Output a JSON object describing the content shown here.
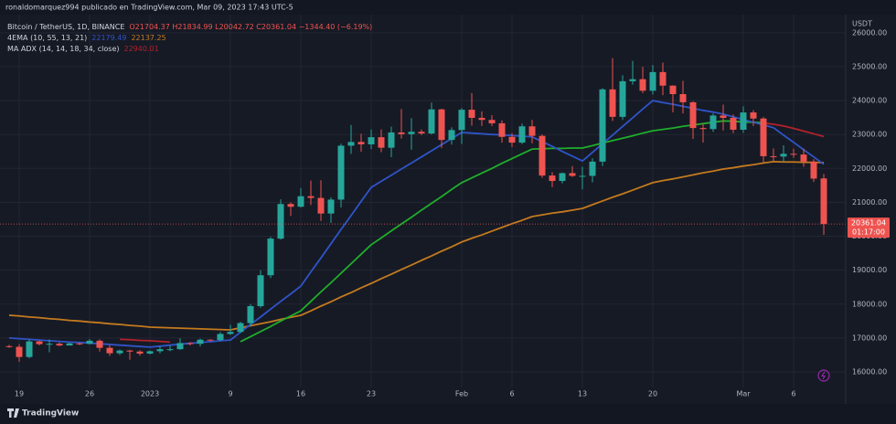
{
  "header": "ronaldomarquez994 publicado en TradingView.com, Mar 09, 2023 17:43 UTC-5",
  "legend": {
    "symbol": "Bitcoin / TetherUS, 1D, BINANCE",
    "ohlc": "O21704.37 H21834.99 L20042.72 C20361.04 −1344.40 (−6.19%)",
    "ema_label": "4EMA (10, 55, 13, 21)",
    "ema_values": [
      "22179.49",
      "22137.25"
    ],
    "adx_label": "MA ADX (14, 14, 18, 34, close)",
    "adx_value": "22940.01"
  },
  "countdown": "01:17:00",
  "axis_unit": "USDT",
  "brand": "TradingView",
  "chart_data": {
    "type": "candlestick",
    "up_color": "#26a69a",
    "down_color": "#ef5350",
    "grid": true,
    "categories": [
      null,
      "19",
      null,
      null,
      null,
      null,
      null,
      null,
      "26",
      null,
      null,
      null,
      null,
      null,
      "2023",
      null,
      null,
      null,
      null,
      null,
      null,
      null,
      "9",
      null,
      null,
      null,
      null,
      null,
      null,
      "16",
      null,
      null,
      null,
      null,
      null,
      null,
      "23",
      null,
      null,
      null,
      null,
      null,
      null,
      null,
      null,
      "Feb",
      null,
      null,
      null,
      null,
      "6",
      null,
      null,
      null,
      null,
      null,
      null,
      "13",
      null,
      null,
      null,
      null,
      null,
      null,
      "20",
      null,
      null,
      null,
      null,
      null,
      null,
      null,
      null,
      "Mar",
      null,
      null,
      null,
      null,
      "6",
      null,
      null,
      null
    ],
    "open": [
      16760,
      16740,
      16440,
      16900,
      16820,
      16830,
      16780,
      16840,
      16830,
      16920,
      16710,
      16550,
      16630,
      16600,
      16540,
      16610,
      16670,
      16670,
      16850,
      16830,
      16950,
      16940,
      17120,
      17180,
      17440,
      17940,
      18850,
      19930,
      20950,
      20870,
      21180,
      21130,
      20670,
      21080,
      22670,
      22780,
      22710,
      22920,
      22610,
      23060,
      23010,
      23080,
      23030,
      23740,
      22840,
      23130,
      23730,
      23490,
      23430,
      23330,
      22930,
      22760,
      23240,
      22960,
      21790,
      21630,
      21860,
      21780,
      21780,
      22200,
      24330,
      23520,
      24570,
      24630,
      24290,
      24840,
      24440,
      24190,
      23950,
      23190,
      23160,
      23560,
      23490,
      23140,
      23650,
      23470,
      22360,
      22350,
      22430,
      22410,
      22200,
      21704.37
    ],
    "high": [
      16800,
      16820,
      16960,
      16920,
      16960,
      16870,
      16870,
      16870,
      16970,
      16960,
      16790,
      16660,
      16650,
      16640,
      16630,
      16760,
      16780,
      16990,
      16880,
      16980,
      16960,
      17180,
      17390,
      17480,
      18000,
      19000,
      19980,
      21090,
      21000,
      21420,
      21640,
      21650,
      21150,
      22730,
      23280,
      23020,
      23150,
      23150,
      23230,
      23750,
      23480,
      23150,
      23940,
      23760,
      23210,
      23780,
      24220,
      23680,
      23570,
      23420,
      23040,
      23320,
      23430,
      23000,
      21890,
      21880,
      22070,
      22050,
      22300,
      24370,
      25250,
      24750,
      25170,
      24990,
      25050,
      25120,
      24450,
      24580,
      23980,
      23320,
      23620,
      23880,
      23590,
      23830,
      23720,
      23520,
      22590,
      22680,
      22580,
      22580,
      22270,
      21834.99
    ],
    "low": [
      16710,
      16300,
      16400,
      16780,
      16580,
      16760,
      16780,
      16790,
      16810,
      16600,
      16470,
      16500,
      16360,
      16480,
      16520,
      16550,
      16610,
      16650,
      16780,
      16750,
      16900,
      16900,
      17090,
      17150,
      17340,
      17890,
      18770,
      19900,
      20600,
      20850,
      20920,
      20450,
      20390,
      20850,
      22430,
      22490,
      22570,
      22480,
      22330,
      22880,
      22550,
      22980,
      23000,
      22600,
      22700,
      22720,
      23260,
      23250,
      23250,
      22760,
      22630,
      22720,
      22740,
      21720,
      21450,
      21560,
      21750,
      21380,
      21590,
      22070,
      23400,
      23430,
      24470,
      24220,
      24180,
      24160,
      23650,
      23620,
      22870,
      22760,
      23080,
      23120,
      23040,
      23050,
      23250,
      22180,
      22220,
      22180,
      22310,
      22050,
      21600,
      20042.72
    ],
    "close": [
      16740,
      16440,
      16900,
      16820,
      16830,
      16780,
      16840,
      16830,
      16920,
      16710,
      16550,
      16630,
      16600,
      16540,
      16610,
      16670,
      16670,
      16850,
      16830,
      16950,
      16940,
      17120,
      17180,
      17440,
      17940,
      18850,
      19930,
      20950,
      20870,
      21180,
      21130,
      20670,
      21080,
      22670,
      22780,
      22710,
      22920,
      22610,
      23060,
      23010,
      23080,
      23030,
      23740,
      22840,
      23130,
      23730,
      23490,
      23430,
      23330,
      22930,
      22760,
      23240,
      22960,
      21790,
      21630,
      21860,
      21780,
      21780,
      22200,
      24330,
      23520,
      24570,
      24630,
      24290,
      24840,
      24440,
      24190,
      23950,
      23190,
      23160,
      23560,
      23490,
      23140,
      23650,
      23470,
      22360,
      22350,
      22430,
      22410,
      22200,
      21700,
      20361.04
    ],
    "series": [
      {
        "color": "#c47a1e",
        "values": [
          17670,
          17650,
          17620,
          17600,
          17570,
          17550,
          17520,
          17500,
          17470,
          17450,
          17420,
          17400,
          17370,
          17350,
          17320,
          17310,
          17300,
          17290,
          17280,
          17270,
          17260,
          17250,
          17240,
          17300,
          17360,
          17420,
          17480,
          17550,
          17610,
          17670,
          17800,
          17940,
          18070,
          18210,
          18340,
          18480,
          18610,
          18750,
          18880,
          19020,
          19150,
          19290,
          19420,
          19560,
          19690,
          19830,
          19940,
          20040,
          20150,
          20260,
          20370,
          20470,
          20580,
          20630,
          20680,
          20720,
          20770,
          20820,
          20930,
          21040,
          21150,
          21250,
          21360,
          21470,
          21580,
          21640,
          21690,
          21750,
          21810,
          21870,
          21920,
          21980,
          22020,
          22070,
          22110,
          22160,
          22200,
          22190,
          22190,
          22180,
          22180,
          22170
        ]
      },
      {
        "color": "#1fae2a",
        "values": [
          null,
          null,
          null,
          null,
          null,
          null,
          null,
          null,
          null,
          null,
          null,
          null,
          null,
          null,
          null,
          null,
          null,
          null,
          null,
          null,
          null,
          null,
          null,
          16890,
          17040,
          17190,
          17340,
          17500,
          17650,
          17800,
          18080,
          18360,
          18630,
          18910,
          19190,
          19470,
          19750,
          19950,
          20160,
          20360,
          20560,
          20770,
          20970,
          21170,
          21380,
          21580,
          21720,
          21860,
          22000,
          22150,
          22290,
          22430,
          22570,
          22580,
          22590,
          22590,
          22600,
          22600,
          22670,
          22750,
          22820,
          22890,
          22960,
          23040,
          23110,
          23150,
          23190,
          23240,
          23280,
          23320,
          23360,
          23400,
          23390,
          23370,
          23360,
          23340,
          null,
          null,
          null,
          null,
          null,
          null
        ]
      },
      {
        "color": "#b2222b",
        "values": [
          null,
          null,
          null,
          null,
          null,
          null,
          null,
          null,
          null,
          null,
          null,
          16960,
          16950,
          16930,
          16920,
          16900,
          16880,
          null,
          null,
          null,
          null,
          null,
          null,
          null,
          null,
          null,
          null,
          null,
          null,
          null,
          null,
          null,
          null,
          null,
          null,
          null,
          null,
          null,
          null,
          null,
          null,
          null,
          null,
          null,
          null,
          null,
          null,
          null,
          null,
          null,
          null,
          null,
          null,
          null,
          null,
          null,
          null,
          null,
          null,
          null,
          null,
          null,
          null,
          null,
          null,
          null,
          null,
          null,
          null,
          null,
          null,
          null,
          null,
          null,
          null,
          23340,
          23300,
          23250,
          23180,
          23100,
          23020,
          22940
        ]
      },
      {
        "color": "#2f54c8",
        "values": [
          17000,
          16980,
          16960,
          16940,
          16920,
          16900,
          16880,
          16870,
          16850,
          16830,
          16810,
          16790,
          16770,
          16750,
          16730,
          16760,
          16790,
          16820,
          16840,
          16870,
          16890,
          16920,
          16940,
          17170,
          17400,
          17620,
          17850,
          18080,
          18300,
          18530,
          18950,
          19360,
          19780,
          20200,
          20610,
          21030,
          21440,
          21620,
          21800,
          21980,
          22160,
          22340,
          22520,
          22700,
          22880,
          23060,
          23040,
          23020,
          23000,
          22990,
          22970,
          22950,
          22930,
          22790,
          22650,
          22500,
          22360,
          22220,
          22470,
          22730,
          22980,
          23240,
          23490,
          23750,
          24000,
          23940,
          23890,
          23830,
          23770,
          23710,
          23660,
          23600,
          23520,
          23440,
          23360,
          23280,
          23200,
          22980,
          22770,
          22550,
          22340,
          22120
        ]
      }
    ],
    "ylim": [
      15650,
      26480
    ],
    "yticks": [
      {
        "value": 16000,
        "label": "16000.00"
      },
      {
        "value": 17000,
        "label": "17000.00"
      },
      {
        "value": 18000,
        "label": "18000.00"
      },
      {
        "value": 19000,
        "label": "19000.00"
      },
      {
        "value": 20000,
        "label": "20000.00"
      },
      {
        "value": 21000,
        "label": "21000.00"
      },
      {
        "value": 22000,
        "label": "22000.00"
      },
      {
        "value": 23000,
        "label": "23000.00"
      },
      {
        "value": 24000,
        "label": "24000.00"
      },
      {
        "value": 25000,
        "label": "25000.00"
      },
      {
        "value": 26000,
        "label": "26000.00"
      }
    ]
  }
}
